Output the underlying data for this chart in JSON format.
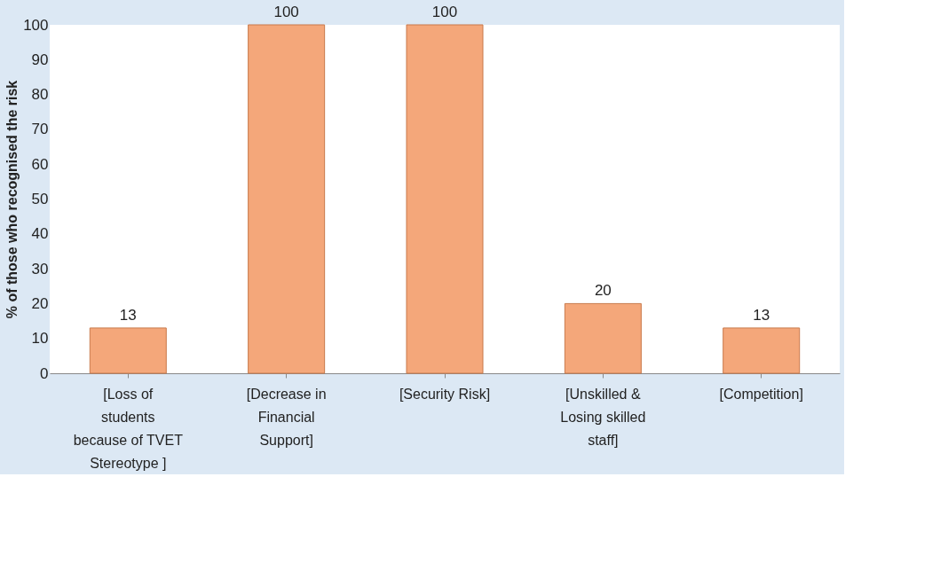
{
  "chart_data": {
    "type": "bar",
    "categories": [
      "[Loss of students because of TVET Stereotype ]",
      "[Decrease in Financial Support]",
      "[Security Risk]",
      "[Unskilled & Losing skilled staff]",
      "[Competition]"
    ],
    "values": [
      13,
      100,
      100,
      20,
      13
    ],
    "color": "#f4a77a",
    "ylabel": "% of those who recognised the risk",
    "ylim": [
      0,
      100
    ],
    "yticks": [
      0,
      10,
      20,
      30,
      40,
      50,
      60,
      70,
      80,
      90,
      100
    ],
    "data_labels": true,
    "grid": false
  }
}
